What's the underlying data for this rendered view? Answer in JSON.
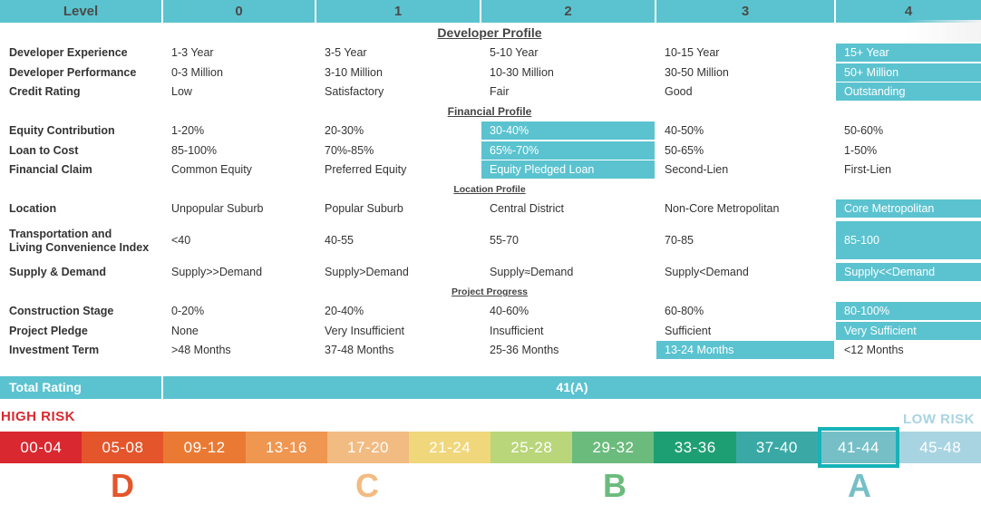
{
  "header": {
    "level_label": "Level",
    "levels": [
      "0",
      "1",
      "2",
      "3",
      "4"
    ]
  },
  "sections": {
    "developer": "Developer Profile",
    "financial": "Financial Profile",
    "location": "Location Profile",
    "project": "Project Progress"
  },
  "rows": [
    {
      "label": "Developer Experience",
      "values": [
        "1-3 Year",
        "3-5 Year",
        "5-10 Year",
        "10-15 Year",
        "15+ Year"
      ],
      "selected": 4
    },
    {
      "label": "Developer Performance",
      "values": [
        "0-3 Million",
        "3-10 Million",
        "10-30 Million",
        "30-50 Million",
        "50+ Million"
      ],
      "selected": 4
    },
    {
      "label": "Credit Rating",
      "values": [
        "Low",
        "Satisfactory",
        "Fair",
        "Good",
        "Outstanding"
      ],
      "selected": 4
    },
    {
      "label": "Equity Contribution",
      "values": [
        "1-20%",
        "20-30%",
        "30-40%",
        "40-50%",
        "50-60%"
      ],
      "selected": 2
    },
    {
      "label": "Loan to Cost",
      "values": [
        "85-100%",
        "70%-85%",
        "65%-70%",
        "50-65%",
        "1-50%"
      ],
      "selected": 2
    },
    {
      "label": "Financial Claim",
      "values": [
        "Common Equity",
        "Preferred Equity",
        "Equity Pledged Loan",
        "Second-Lien",
        "First-Lien"
      ],
      "selected": 2
    },
    {
      "label": "Location",
      "values": [
        "Unpopular Suburb",
        "Popular Suburb",
        "Central District",
        "Non-Core Metropolitan",
        "Core Metropolitan"
      ],
      "selected": 4
    },
    {
      "label_line1": "Transportation and",
      "label_line2": "Living Convenience Index",
      "values": [
        "<40",
        "40-55",
        "55-70",
        "70-85",
        "85-100"
      ],
      "selected": 4
    },
    {
      "label": "Supply & Demand",
      "values": [
        "Supply>>Demand",
        "Supply>Demand",
        "Supply≈Demand",
        "Supply<Demand",
        "Supply<<Demand"
      ],
      "selected": 4
    },
    {
      "label": "Construction Stage",
      "values": [
        "0-20%",
        "20-40%",
        "40-60%",
        "60-80%",
        "80-100%"
      ],
      "selected": 4
    },
    {
      "label": "Project Pledge",
      "values": [
        "None",
        "Very Insufficient",
        "Insufficient",
        "Sufficient",
        "Very Sufficient"
      ],
      "selected": 4
    },
    {
      "label": "Investment Term",
      "values": [
        ">48 Months",
        "37-48 Months",
        "25-36 Months",
        "13-24 Months",
        "<12 Months"
      ],
      "selected": 3
    }
  ],
  "total": {
    "label": "Total Rating",
    "value": "41(A)"
  },
  "scale": {
    "high_risk": "HIGH RISK",
    "low_risk": "LOW RISK",
    "segments": [
      {
        "range": "00-04",
        "color": "#d9282f"
      },
      {
        "range": "05-08",
        "color": "#e4552b"
      },
      {
        "range": "09-12",
        "color": "#ea7a33"
      },
      {
        "range": "13-16",
        "color": "#ef9651"
      },
      {
        "range": "17-20",
        "color": "#f2bb82"
      },
      {
        "range": "21-24",
        "color": "#f0d77c"
      },
      {
        "range": "25-28",
        "color": "#b9d67a"
      },
      {
        "range": "29-32",
        "color": "#6bbb7d"
      },
      {
        "range": "33-36",
        "color": "#1e9f73"
      },
      {
        "range": "37-40",
        "color": "#3aa9a5"
      },
      {
        "range": "41-44",
        "color": "#76bfc7"
      },
      {
        "range": "45-48",
        "color": "#a8d4e2"
      }
    ],
    "selected": 10,
    "grades": [
      {
        "letter": "D",
        "color": "#e4552b"
      },
      {
        "letter": "C",
        "color": "#f2bb82"
      },
      {
        "letter": "B",
        "color": "#6bbb7d"
      },
      {
        "letter": "A",
        "color": "#76bfc7"
      }
    ]
  },
  "colors": {
    "accent": "#5bc3cf",
    "high_risk": "#d9282f",
    "low_risk": "#a8d4e2",
    "highlight_border": "#17b3b8"
  }
}
